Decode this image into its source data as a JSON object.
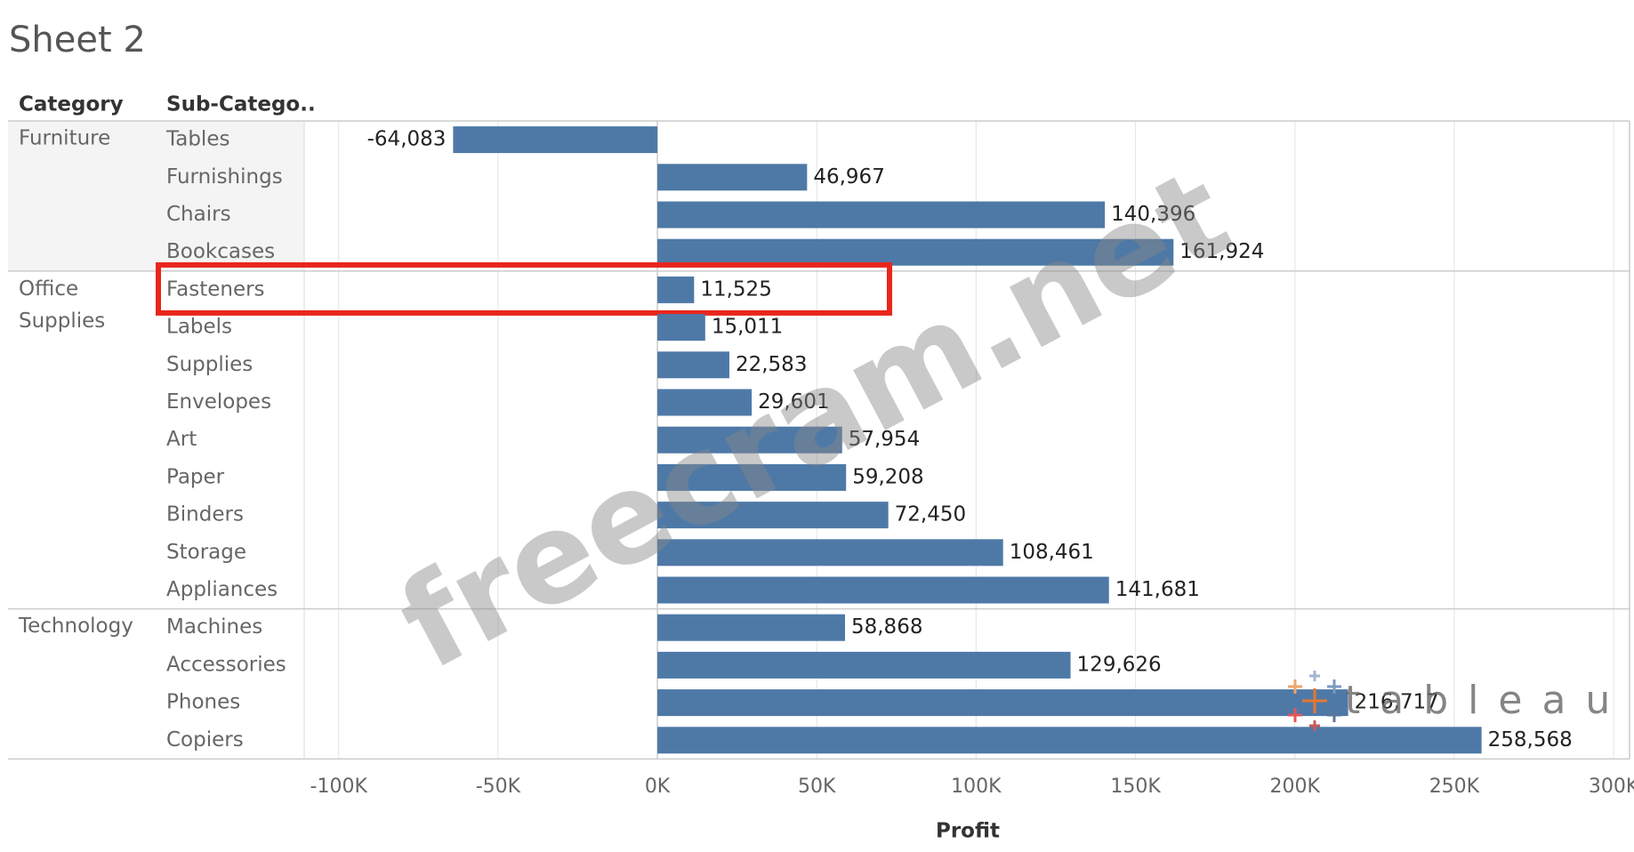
{
  "chart_data": {
    "type": "bar",
    "orientation": "horizontal",
    "title": "Sheet 2",
    "row_headers": [
      "Category",
      "Sub-Catego.."
    ],
    "x_label": "Profit",
    "color": "#4e79a7",
    "grid": true,
    "xlim": [
      -110800,
      305000
    ],
    "xticks": [
      {
        "value": -100000,
        "label": "-100K"
      },
      {
        "value": -50000,
        "label": "-50K"
      },
      {
        "value": 0,
        "label": "0K"
      },
      {
        "value": 50000,
        "label": "50K"
      },
      {
        "value": 100000,
        "label": "100K"
      },
      {
        "value": 150000,
        "label": "150K"
      },
      {
        "value": 200000,
        "label": "200K"
      },
      {
        "value": 250000,
        "label": "250K"
      },
      {
        "value": 300000,
        "label": "300K"
      }
    ],
    "groups": [
      {
        "name": "Furniture",
        "categories": [
          "Tables",
          "Furnishings",
          "Chairs",
          "Bookcases"
        ],
        "values": [
          -64083,
          46967,
          140396,
          161924
        ],
        "value_labels": [
          "-64,083",
          "46,967",
          "140,396",
          "161,924"
        ]
      },
      {
        "name": "Office Supplies",
        "categories": [
          "Fasteners",
          "Labels",
          "Supplies",
          "Envelopes",
          "Art",
          "Paper",
          "Binders",
          "Storage",
          "Appliances"
        ],
        "values": [
          11525,
          15011,
          22583,
          29601,
          57954,
          59208,
          72450,
          108461,
          141681
        ],
        "value_labels": [
          "11,525",
          "15,011",
          "22,583",
          "29,601",
          "57,954",
          "59,208",
          "72,450",
          "108,461",
          "141,681"
        ]
      },
      {
        "name": "Technology",
        "categories": [
          "Machines",
          "Accessories",
          "Phones",
          "Copiers"
        ],
        "values": [
          58868,
          129626,
          216717,
          258568
        ],
        "value_labels": [
          "58,868",
          "129,626",
          "216,717",
          "258,568"
        ]
      }
    ],
    "highlight": "Fasteners",
    "watermark": "freecram.net",
    "logo": "tableau"
  }
}
